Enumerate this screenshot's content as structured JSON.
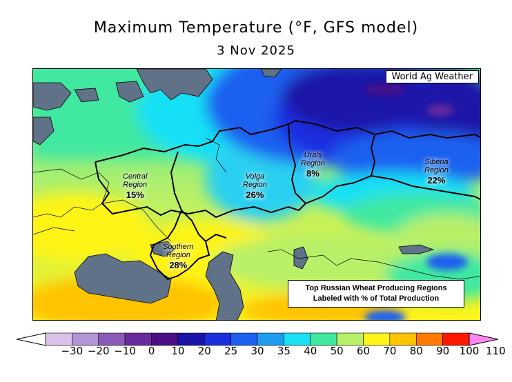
{
  "title": "Maximum Temperature (°F, GFS model)",
  "date": "3 Nov 2025",
  "credit": "World Ag Weather",
  "note_line1": "Top Russian Wheat Producing Regions",
  "note_line2": "Labeled with % of Total Production",
  "regions": [
    {
      "name_line1": "Central",
      "name_line2": "Region",
      "pct": "15%"
    },
    {
      "name_line1": "Volga",
      "name_line2": "Region",
      "pct": "26%"
    },
    {
      "name_line1": "Urals",
      "name_line2": "Region",
      "pct": "8%"
    },
    {
      "name_line1": "Siberia",
      "name_line2": "Region",
      "pct": "22%"
    },
    {
      "name_line1": "Southern",
      "name_line2": "Region",
      "pct": "28%"
    }
  ],
  "colorbar": {
    "ticks": [
      "−30",
      "−20",
      "−10",
      "0",
      "10",
      "20",
      "25",
      "30",
      "35",
      "40",
      "50",
      "60",
      "70",
      "80",
      "90",
      "100",
      "110"
    ],
    "colors": [
      "#d9c2e8",
      "#b295d4",
      "#8a5bb8",
      "#6a2c9c",
      "#4a0f85",
      "#1a14a8",
      "#1d2ee0",
      "#1e60f0",
      "#1e9cf0",
      "#18e0f5",
      "#40e8a0",
      "#b8f068",
      "#fff418",
      "#ffc400",
      "#ff7a00",
      "#ff1800",
      "#ff10b0",
      "#ff88f0"
    ]
  }
}
